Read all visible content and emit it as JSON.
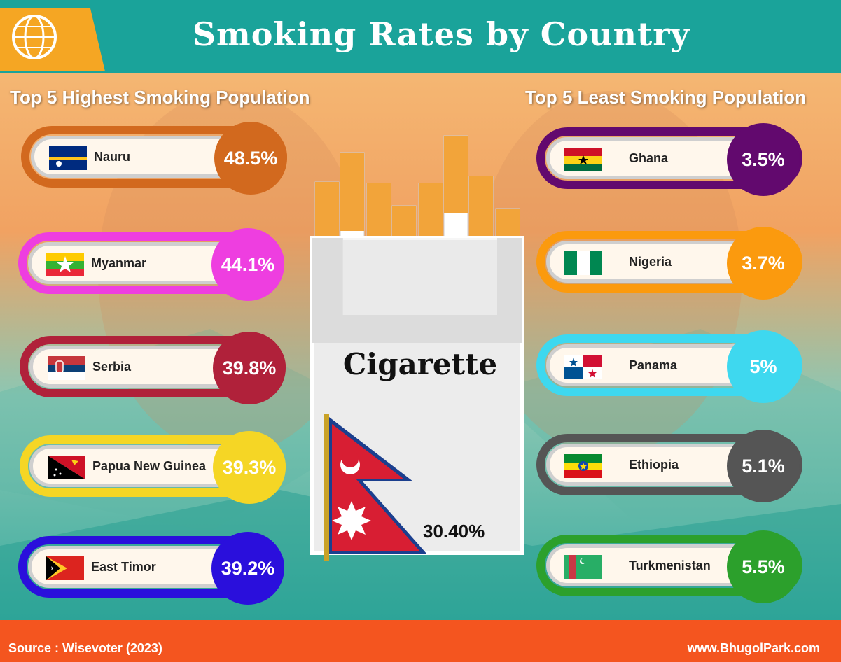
{
  "header": {
    "title": "Smoking Rates by Country",
    "logo_icon": "globe-logo-icon"
  },
  "sections": {
    "left_title": "Top 5 Highest Smoking Population",
    "right_title": "Top 5 Least Smoking Population"
  },
  "center": {
    "pack_label": "Cigarette",
    "country": "Nepal",
    "value_label": "30.40%"
  },
  "footer": {
    "source": "Source : Wisevoter (2023)",
    "site": "www.BhugolPark.com"
  },
  "chart_data": {
    "type": "table",
    "title": "Smoking Rates by Country",
    "unit": "%",
    "highest": [
      {
        "country": "Nauru",
        "value": 48.5,
        "label": "48.5%",
        "color": "#d2691e",
        "flag_icon": "nauru-flag-icon"
      },
      {
        "country": "Myanmar",
        "value": 44.1,
        "label": "44.1%",
        "color": "#ee3ee0",
        "flag_icon": "myanmar-flag-icon"
      },
      {
        "country": "Serbia",
        "value": 39.8,
        "label": "39.8%",
        "color": "#b0213a",
        "flag_icon": "serbia-flag-icon"
      },
      {
        "country": "Papua New Guinea",
        "value": 39.3,
        "label": "39.3%",
        "color": "#f5d625",
        "flag_icon": "papua-new-guinea-flag-icon"
      },
      {
        "country": "East Timor",
        "value": 39.2,
        "label": "39.2%",
        "color": "#2a0fdc",
        "flag_icon": "east-timor-flag-icon"
      }
    ],
    "least": [
      {
        "country": "Ghana",
        "value": 3.5,
        "label": "3.5%",
        "color": "#62096e",
        "flag_icon": "ghana-flag-icon"
      },
      {
        "country": "Nigeria",
        "value": 3.7,
        "label": "3.7%",
        "color": "#fb9a0e",
        "flag_icon": "nigeria-flag-icon"
      },
      {
        "country": "Panama",
        "value": 5,
        "label": "5%",
        "color": "#3ed8ef",
        "flag_icon": "panama-flag-icon"
      },
      {
        "country": "Ethiopia",
        "value": 5.1,
        "label": "5.1%",
        "color": "#555555",
        "flag_icon": "ethiopia-flag-icon"
      },
      {
        "country": "Turkmenistan",
        "value": 5.5,
        "label": "5.5%",
        "color": "#2ca02c",
        "flag_icon": "turkmenistan-flag-icon"
      }
    ]
  }
}
